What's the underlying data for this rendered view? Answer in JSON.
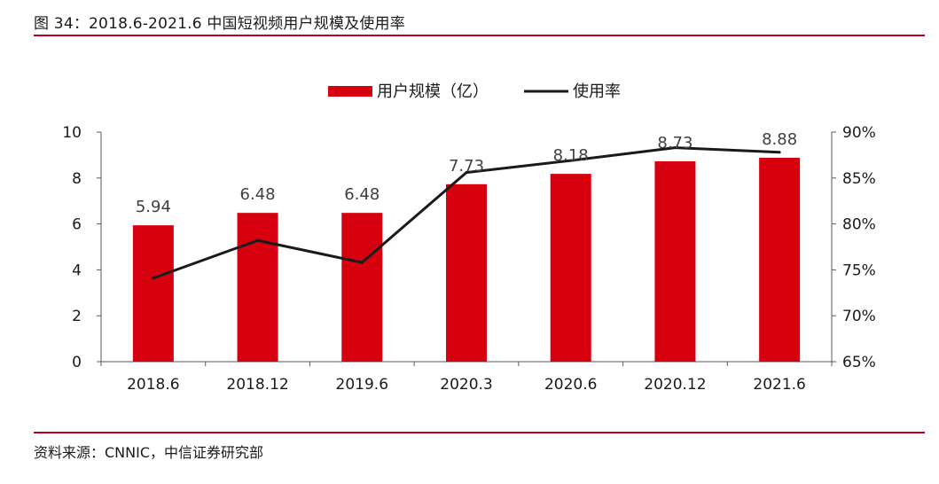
{
  "figure": {
    "title": "图 34：2018.6-2021.6 中国短视频用户规模及使用率",
    "source": "资料来源：CNNIC，中信证券研究部"
  },
  "colors": {
    "bar": "#d7000f",
    "line": "#1a1a1a",
    "rule": "#b8001f",
    "axis": "#595959"
  },
  "chart_data": {
    "type": "bar",
    "title": "",
    "categories": [
      "2018.6",
      "2018.12",
      "2019.6",
      "2020.3",
      "2020.6",
      "2020.12",
      "2021.6"
    ],
    "series": [
      {
        "name": "用户规模（亿）",
        "type": "bar",
        "axis": "left",
        "values": [
          5.94,
          6.48,
          6.48,
          7.73,
          8.18,
          8.73,
          8.88
        ]
      },
      {
        "name": "使用率",
        "type": "line",
        "axis": "right",
        "values": [
          74.1,
          78.2,
          75.8,
          85.6,
          86.9,
          88.3,
          87.8
        ]
      }
    ],
    "y_left": {
      "ylim": [
        0,
        10
      ],
      "ticks": [
        "0",
        "2",
        "4",
        "6",
        "8",
        "10"
      ]
    },
    "y_right": {
      "ylim": [
        65,
        90
      ],
      "ticks": [
        "65%",
        "70%",
        "75%",
        "80%",
        "85%",
        "90%"
      ]
    },
    "legend": "top-center",
    "grid": false
  }
}
